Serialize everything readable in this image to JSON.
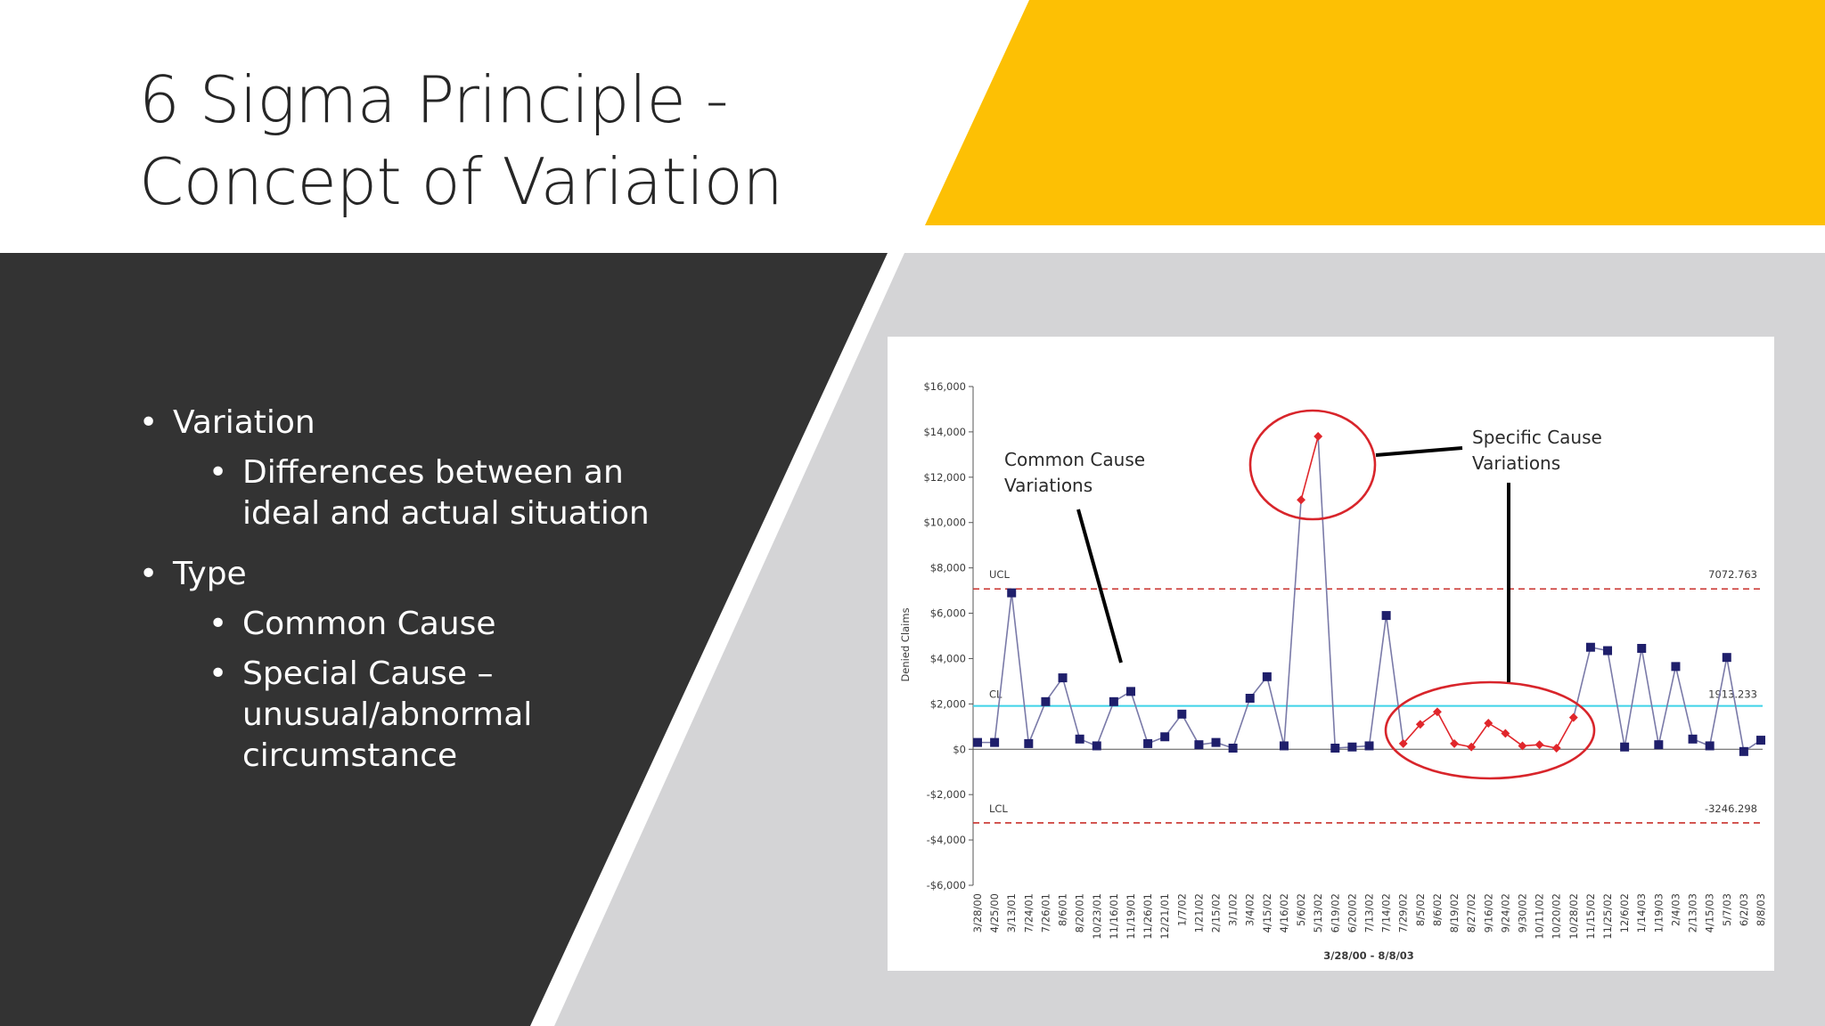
{
  "slide": {
    "title_lines": [
      "6 Sigma Principle -",
      "Concept of Variation"
    ],
    "bullets": {
      "variation": "Variation",
      "variation_sub": [
        "Differences between an",
        "ideal and actual situation"
      ],
      "type": "Type",
      "common": "Common Cause",
      "special": [
        "Special Cause –",
        "unusual/abnormal",
        "circumstance"
      ]
    },
    "colors": {
      "accent_yellow": "#FDC004",
      "dark_panel": "#333333",
      "grey_panel": "#D4D4D6"
    }
  },
  "chart_data": {
    "type": "line",
    "xlabel": "3/28/00 - 8/8/03",
    "ylabel": "Denied Claims",
    "ylim": [
      -6000,
      16000
    ],
    "yticks": [
      -6000,
      -4000,
      -2000,
      0,
      2000,
      4000,
      6000,
      8000,
      10000,
      12000,
      14000,
      16000
    ],
    "ytick_labels": [
      "-$6,000",
      "-$4,000",
      "-$2,000",
      "$0",
      "$2,000",
      "$4,000",
      "$6,000",
      "$8,000",
      "$10,000",
      "$12,000",
      "$14,000",
      "$16,000"
    ],
    "categories": [
      "3/28/00",
      "4/25/00",
      "3/13/01",
      "7/24/01",
      "7/26/01",
      "8/6/01",
      "8/20/01",
      "10/23/01",
      "11/16/01",
      "11/19/01",
      "11/26/01",
      "12/21/01",
      "1/7/02",
      "1/21/02",
      "2/15/02",
      "3/1/02",
      "3/4/02",
      "4/15/02",
      "4/16/02",
      "5/6/02",
      "5/13/02",
      "6/19/02",
      "6/20/02",
      "7/13/02",
      "7/14/02",
      "7/29/02",
      "8/5/02",
      "8/6/02",
      "8/19/02",
      "8/27/02",
      "9/16/02",
      "9/24/02",
      "9/30/02",
      "10/11/02",
      "10/20/02",
      "10/28/02",
      "11/15/02",
      "11/25/02",
      "12/6/02",
      "1/14/03",
      "1/19/03",
      "2/4/03",
      "2/13/03",
      "4/15/03",
      "5/7/03",
      "6/2/03",
      "8/8/03"
    ],
    "values": [
      300,
      300,
      6900,
      250,
      2100,
      3150,
      450,
      150,
      2100,
      2550,
      250,
      550,
      1550,
      200,
      300,
      50,
      2250,
      3200,
      150,
      11000,
      13800,
      50,
      100,
      150,
      5900,
      250,
      1100,
      1650,
      250,
      100,
      1150,
      700,
      150,
      200,
      50,
      1400,
      4500,
      4350,
      100,
      4450,
      200,
      3650,
      450,
      150,
      4050,
      -100,
      400
    ],
    "special_cause_indices": [
      19,
      20,
      25,
      26,
      27,
      28,
      29,
      30,
      31,
      32,
      33,
      34,
      35
    ],
    "control_limits": {
      "UCL": 7072.763,
      "CL": 1913.233,
      "LCL": -3246.298,
      "labels": {
        "ucl": "UCL",
        "cl": "CL",
        "lcl": "LCL"
      },
      "value_labels": {
        "ucl": "7072.763",
        "cl": "1913.233",
        "lcl": "-3246.298"
      }
    },
    "annotations": {
      "common_cause": [
        "Common Cause",
        "Variations"
      ],
      "specific_cause": [
        "Specific Cause",
        "Variations"
      ]
    },
    "series_colors": {
      "common": "#1F1F6B",
      "special": "#E0262B",
      "line": "#7A7AA8",
      "ucl_lcl": "#C9302C",
      "cl": "#3ED3E8",
      "circle": "#D8252B"
    },
    "grid": false
  }
}
